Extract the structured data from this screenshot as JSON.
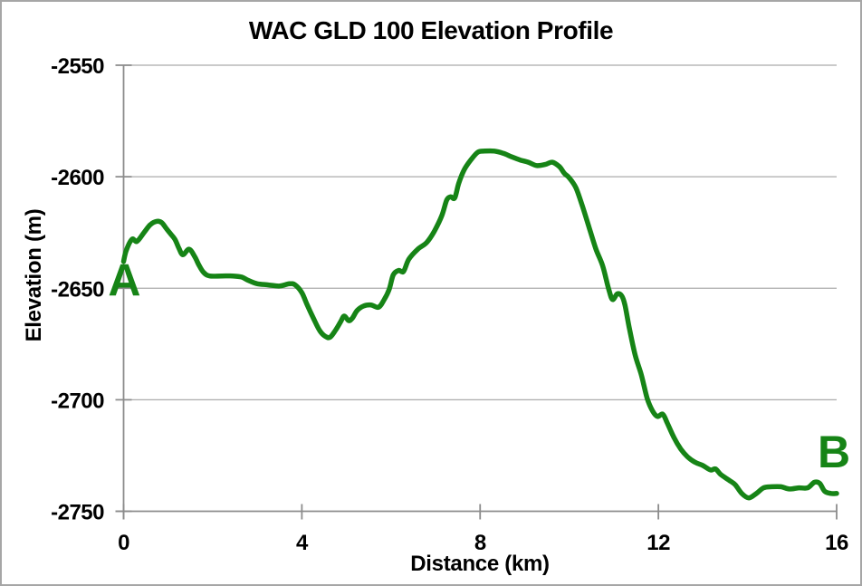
{
  "chart": {
    "title": "WAC GLD 100 Elevation Profile",
    "y_axis": {
      "title": "Elevation (m)"
    },
    "x_axis": {
      "title": "Distance (km)"
    }
  },
  "chart_data": {
    "type": "line",
    "title": "WAC GLD 100 Elevation Profile",
    "xlabel": "Distance (km)",
    "ylabel": "Elevation (m)",
    "xlim": [
      0,
      16
    ],
    "ylim": [
      -2750,
      -2550
    ],
    "x_ticks": [
      0,
      4,
      8,
      12,
      16
    ],
    "y_ticks": [
      -2550,
      -2600,
      -2650,
      -2700,
      -2750
    ],
    "grid": "horizontal",
    "legend": "none",
    "line_color": "#168416",
    "grid_color": "#ababab",
    "axis_color": "#8c8c8c",
    "annotations": [
      {
        "label": "A",
        "x": 0.02,
        "y": -2646
      },
      {
        "label": "B",
        "x": 15.94,
        "y": -2723
      }
    ],
    "series": [
      {
        "name": "elevation",
        "x": [
          0,
          0.06,
          0.19,
          0.3,
          0.46,
          0.6,
          0.74,
          0.85,
          0.95,
          1.05,
          1.15,
          1.24,
          1.33,
          1.47,
          1.6,
          1.7,
          1.8,
          1.93,
          2.2,
          2.45,
          2.65,
          2.8,
          3.0,
          3.25,
          3.5,
          3.72,
          3.85,
          4.0,
          4.12,
          4.26,
          4.4,
          4.52,
          4.63,
          4.75,
          4.87,
          4.95,
          5.05,
          5.13,
          5.24,
          5.38,
          5.55,
          5.72,
          5.85,
          5.96,
          6.05,
          6.17,
          6.28,
          6.4,
          6.6,
          6.8,
          6.97,
          7.14,
          7.25,
          7.34,
          7.43,
          7.52,
          7.64,
          7.79,
          7.95,
          8.1,
          8.32,
          8.52,
          8.7,
          8.9,
          9.08,
          9.27,
          9.46,
          9.62,
          9.78,
          9.89,
          10.0,
          10.15,
          10.3,
          10.45,
          10.6,
          10.75,
          10.88,
          10.97,
          11.08,
          11.18,
          11.25,
          11.35,
          11.48,
          11.62,
          11.75,
          11.87,
          11.98,
          12.1,
          12.2,
          12.35,
          12.5,
          12.65,
          12.82,
          13.0,
          13.17,
          13.28,
          13.4,
          13.58,
          13.72,
          13.87,
          14.03,
          14.2,
          14.36,
          14.55,
          14.75,
          14.94,
          15.15,
          15.35,
          15.5,
          15.62,
          15.73,
          15.87,
          16.0
        ],
        "y": [
          -2638,
          -2633,
          -2628,
          -2629,
          -2625,
          -2621.5,
          -2620,
          -2620.5,
          -2623,
          -2625.5,
          -2628,
          -2632,
          -2635,
          -2632.5,
          -2636,
          -2640,
          -2643,
          -2644.5,
          -2644.5,
          -2644.5,
          -2645,
          -2646.5,
          -2648,
          -2648.5,
          -2649,
          -2648,
          -2648.5,
          -2652,
          -2657.5,
          -2663.5,
          -2669,
          -2671.5,
          -2672,
          -2669,
          -2665,
          -2662.5,
          -2664.5,
          -2663.5,
          -2660,
          -2658,
          -2657.5,
          -2658.5,
          -2655,
          -2650.5,
          -2644,
          -2642,
          -2642.5,
          -2637,
          -2632.5,
          -2629.5,
          -2624.5,
          -2617.5,
          -2610.5,
          -2609,
          -2609.5,
          -2603,
          -2597,
          -2592.5,
          -2589,
          -2588.5,
          -2588.5,
          -2589.5,
          -2591,
          -2592.5,
          -2593.5,
          -2595,
          -2594.5,
          -2593.5,
          -2595.5,
          -2598.5,
          -2600.5,
          -2605,
          -2613.5,
          -2623,
          -2632.5,
          -2640,
          -2650,
          -2655,
          -2652.5,
          -2653.5,
          -2657.5,
          -2668,
          -2680,
          -2689,
          -2699.5,
          -2705,
          -2707.5,
          -2706.5,
          -2710.5,
          -2717,
          -2722,
          -2725.5,
          -2728,
          -2729.5,
          -2731.5,
          -2731,
          -2733.5,
          -2736,
          -2738,
          -2742,
          -2744,
          -2742,
          -2739.5,
          -2739,
          -2739,
          -2740,
          -2739.5,
          -2739.5,
          -2737,
          -2737.5,
          -2741,
          -2742,
          -2742
        ]
      }
    ]
  }
}
